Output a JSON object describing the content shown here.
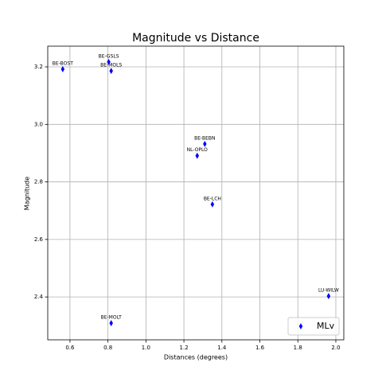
{
  "chart_data": {
    "type": "scatter",
    "title": "Magnitude vs Distance",
    "x_label": "Distances (degrees)",
    "y_label": "Magnitude",
    "x": [
      0.562,
      0.804,
      0.817,
      1.31,
      1.27,
      1.35,
      1.962,
      0.817
    ],
    "point_labels": [
      "BE-BOST",
      "BE-GSLS",
      "BE-MOLS",
      "BE-BEBN",
      "NL-OPLO",
      "BE-LCH",
      "LU-WILW",
      "BE-MOLT"
    ],
    "series": [
      {
        "name": "MLv",
        "color": "#0000ff",
        "values": [
          3.192,
          3.217,
          3.186,
          2.932,
          2.891,
          2.722,
          2.403,
          2.309
        ]
      }
    ],
    "xlim": [
      0.483,
      2.042
    ],
    "xticks": [
      0.6,
      0.8,
      {
        "value": 1.0,
        "label": "1.0"
      },
      1.2,
      1.4,
      1.6,
      1.8,
      {
        "value": 2.0,
        "label": "2.0"
      }
    ],
    "ylim": [
      2.251,
      3.272
    ],
    "yticks": [
      {
        "value": 2.4,
        "label": "2.4"
      },
      2.6,
      2.8,
      {
        "value": 3.0,
        "label": "3.0"
      },
      3.2
    ],
    "grid": true,
    "legend": "lower right",
    "marker": "diamond"
  }
}
